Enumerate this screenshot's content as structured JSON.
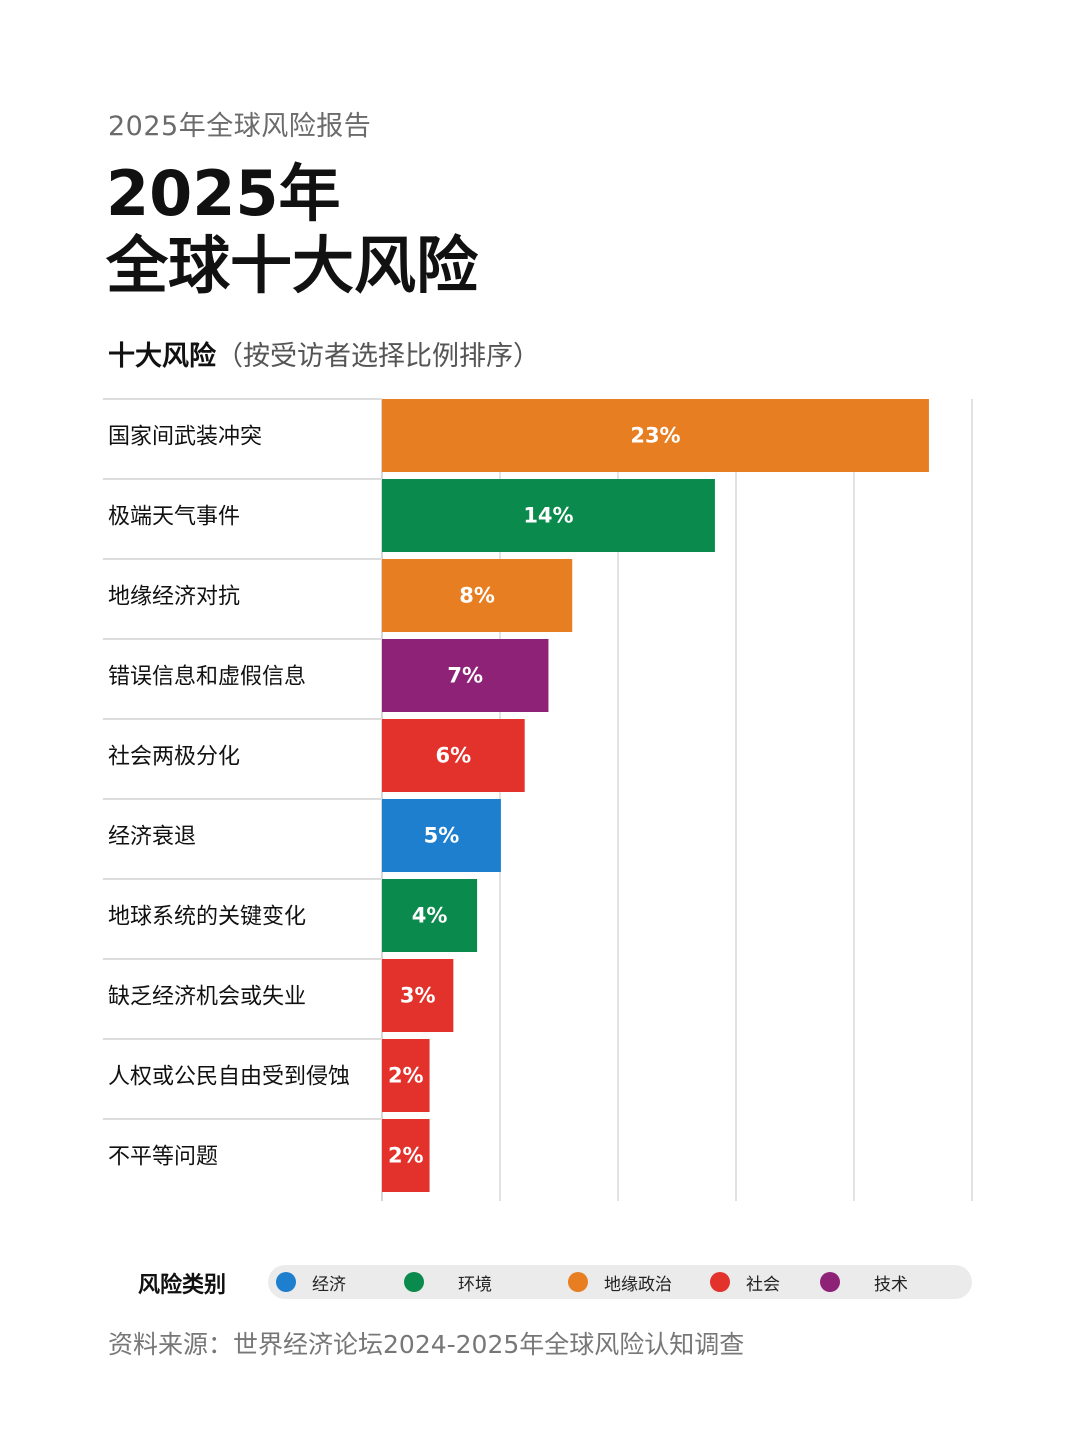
{
  "header": {
    "eyebrow": "2025年全球风险报告",
    "title_line1": "2025年",
    "title_line2": "全球十大风险",
    "subtitle_strong": "十大风险",
    "subtitle_light": "（按受访者选择比例排序）"
  },
  "colors": {
    "经济": "#1e7fcf",
    "环境": "#0a8a4c",
    "地缘政治": "#e77e22",
    "社会": "#e3312b",
    "技术": "#8e2277"
  },
  "chart_data": {
    "type": "bar",
    "orientation": "horizontal",
    "title": "",
    "xlabel": "",
    "ylabel": "",
    "xlim": [
      0,
      23.5
    ],
    "grid": true,
    "categories": [
      "国家间武装冲突",
      "极端天气事件",
      "地缘经济对抗",
      "错误信息和虚假信息",
      "社会两极分化",
      "经济衰退",
      "地球系统的关键变化",
      "缺乏经济机会或失业",
      "人权或公民自由受到侵蚀",
      "不平等问题"
    ],
    "values": [
      23,
      14,
      8,
      7,
      6,
      5,
      4,
      3,
      2,
      2
    ],
    "value_labels": [
      "23%",
      "14%",
      "8%",
      "7%",
      "6%",
      "5%",
      "4%",
      "3%",
      "2%",
      "2%"
    ],
    "risk_types": [
      "地缘政治",
      "环境",
      "地缘政治",
      "技术",
      "社会",
      "经济",
      "环境",
      "社会",
      "社会",
      "社会"
    ]
  },
  "legend": {
    "title": "风险类别",
    "items": [
      {
        "label": "经济",
        "color": "#1e7fcf"
      },
      {
        "label": "环境",
        "color": "#0a8a4c"
      },
      {
        "label": "地缘政治",
        "color": "#e77e22"
      },
      {
        "label": "社会",
        "color": "#e3312b"
      },
      {
        "label": "技术",
        "color": "#8e2277"
      }
    ]
  },
  "footer": {
    "source": "资料来源：世界经济论坛2024-2025年全球风险认知调查"
  }
}
